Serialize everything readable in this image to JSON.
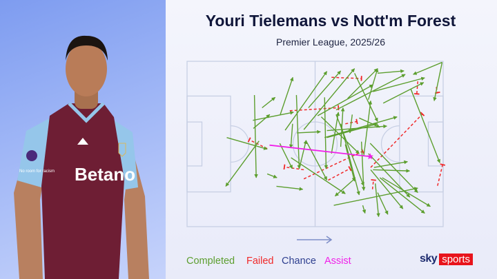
{
  "header": {
    "title": "Youri Tielemans vs Nott'm Forest",
    "subtitle": "Premier League, 2025/26"
  },
  "player_photo": {
    "sponsor": "Betano",
    "sleeve_text": "No room for racism",
    "shirt_color": "#6e1e34",
    "sleeve_color": "#95c6ea"
  },
  "legend": [
    {
      "label": "Completed",
      "color": "#5c9e2e"
    },
    {
      "label": "Failed",
      "color": "#f02828"
    },
    {
      "label": "Chance",
      "color": "#2e3f8f"
    },
    {
      "label": "Assist",
      "color": "#f020e8"
    }
  ],
  "attack_direction": "left-to-right",
  "brand": {
    "part1": "sky",
    "part2": "sports"
  },
  "chart_data": {
    "type": "pass-map",
    "pitch_range": {
      "x": [
        0,
        100
      ],
      "y": [
        0,
        100
      ]
    },
    "completed": [
      [
        99.6,
        0.6,
        88.3,
        7.9
      ],
      [
        99.6,
        0.6,
        96.5,
        23.9
      ],
      [
        15.5,
        46.1,
        31.3,
        53.1
      ],
      [
        28.1,
        48.2,
        15.1,
        75.6
      ],
      [
        26.3,
        20.4,
        27.0,
        70.4
      ],
      [
        25.7,
        35.7,
        41.6,
        30.8
      ],
      [
        25.9,
        40.6,
        32.3,
        32.2
      ],
      [
        29.3,
        28.1,
        34.4,
        21.8
      ],
      [
        36.4,
        32.2,
        41.3,
        9.7
      ],
      [
        31.3,
        68.1,
        35.1,
        70.4
      ],
      [
        34.9,
        75.6,
        45.2,
        77.4
      ],
      [
        36.2,
        49.6,
        41.1,
        64.9
      ],
      [
        42.7,
        20.4,
        43.8,
        64.9
      ],
      [
        41.2,
        37.8,
        40.5,
        52.4
      ],
      [
        42.9,
        43.3,
        52.1,
        42.6
      ],
      [
        38.3,
        41.7,
        54.6,
        6.1
      ],
      [
        45.6,
        41.3,
        65.4,
        4.4
      ],
      [
        46.5,
        48.2,
        54.6,
        71.8
      ],
      [
        40.6,
        58.3,
        61.8,
        80.1
      ],
      [
        43.8,
        64.9,
        46.5,
        47.8
      ],
      [
        53.7,
        21.8,
        54.3,
        64.9
      ],
      [
        54.6,
        46.1,
        74.4,
        37.8
      ],
      [
        53.7,
        46.1,
        82.0,
        33.6
      ],
      [
        56.4,
        55.8,
        59.1,
        30.8
      ],
      [
        58.2,
        32.2,
        69.0,
        75.3
      ],
      [
        60.0,
        37.8,
        67.2,
        80.8
      ],
      [
        61.8,
        50.3,
        65.4,
        72.5
      ],
      [
        62.7,
        22.5,
        74.4,
        4.4
      ],
      [
        65.4,
        7.2,
        74.4,
        36.4
      ],
      [
        67.2,
        34.3,
        75.3,
        39.9
      ],
      [
        69.0,
        57.2,
        71.7,
        23.9
      ],
      [
        68.1,
        48.6,
        69.0,
        78.1
      ],
      [
        71.5,
        49.6,
        90.1,
        79.4
      ],
      [
        72.6,
        18.3,
        92.8,
        10.0
      ],
      [
        76.6,
        25.3,
        92.4,
        12.8
      ],
      [
        74.4,
        7.2,
        84.7,
        5.8
      ],
      [
        87.4,
        16.9,
        98.7,
        61.4
      ],
      [
        57.3,
        87.1,
        90.1,
        76.7
      ],
      [
        73.0,
        64.2,
        86.1,
        60.7
      ],
      [
        72.6,
        65.6,
        86.9,
        66.3
      ],
      [
        76.2,
        70.4,
        95.0,
        87.8
      ],
      [
        75.3,
        70.4,
        92.8,
        91.9
      ],
      [
        71.7,
        65.6,
        84.3,
        89.2
      ],
      [
        73.5,
        73.9,
        74.8,
        94.0
      ],
      [
        74.4,
        79.4,
        78.4,
        92.6
      ],
      [
        68.6,
        87.1,
        69.5,
        91.9
      ],
      [
        65.4,
        71.1,
        57.8,
        81.5
      ],
      [
        70.8,
        55.8,
        87.0,
        82.2
      ],
      [
        51.0,
        32.9,
        72.6,
        14.2
      ],
      [
        47.4,
        28.1,
        60.0,
        5.8
      ],
      [
        58.2,
        29.4,
        85.2,
        7.9
      ],
      [
        70.8,
        23.2,
        74.4,
        4.4
      ],
      [
        52.4,
        33.6,
        67.2,
        55.8
      ],
      [
        60.0,
        51.7,
        60.9,
        28.1
      ],
      [
        64.5,
        32.2,
        63.6,
        43.3
      ],
      [
        54.6,
        41.9,
        78.0,
        39.2
      ]
    ],
    "failed": [
      [
        56.4,
        9.7,
        68.1,
        10.4
      ],
      [
        40.1,
        29.9,
        59.1,
        28.1
      ],
      [
        31.3,
        52.8,
        24.3,
        47.5
      ],
      [
        45.6,
        71.1,
        68.6,
        54.4
      ],
      [
        55.1,
        71.9,
        63.6,
        64.9
      ],
      [
        45.6,
        65.6,
        38.0,
        63.9
      ],
      [
        71.7,
        64.2,
        91.9,
        31.9
      ],
      [
        97.8,
        75.3,
        99.8,
        62.5
      ],
      [
        90.1,
        12.1,
        89.7,
        19.7
      ],
      [
        97.3,
        15.6,
        97.8,
        19.0
      ],
      [
        61.8,
        37.8,
        66.3,
        36.4
      ],
      [
        72.4,
        77.4,
        72.8,
        71.8
      ]
    ],
    "chance": [],
    "assist": [
      [
        32.2,
        50.7,
        71.5,
        57.6
      ]
    ]
  }
}
